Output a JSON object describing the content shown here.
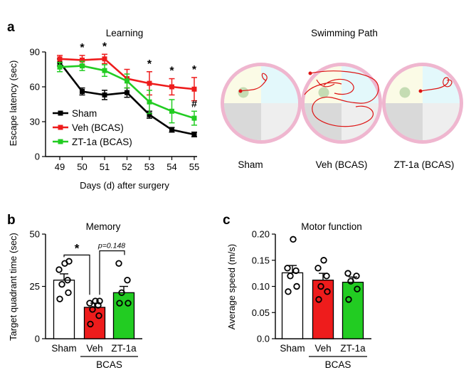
{
  "colors": {
    "sham": "#000000",
    "veh": "#ee1c1c",
    "zt": "#22cc22",
    "pool_ring": "#efb6cf",
    "pool_fill": "#e7e7e7",
    "quad_target": "#fbfbe6",
    "quad_cyan": "#e3f8fb",
    "quad_gray": "#d9d9d9",
    "platform": "#c5dcb3",
    "path": "#dd1414"
  },
  "panel_a": {
    "letter": "a",
    "chart_data": {
      "type": "line",
      "title": "Learning",
      "xlabel": "Days (d) after surgery",
      "ylabel": "Escape latency (sec)",
      "categories": [
        "49",
        "50",
        "51",
        "52",
        "53",
        "54",
        "55"
      ],
      "ylim": [
        0,
        90
      ],
      "yticks": [
        "0",
        "30",
        "60",
        "90"
      ],
      "series": [
        {
          "name": "Sham",
          "color": "#000000",
          "values": [
            81,
            56,
            53,
            55,
            36,
            23,
            19
          ],
          "err": [
            3,
            3,
            4,
            4,
            3,
            2,
            2
          ]
        },
        {
          "name": "Veh (BCAS)",
          "color": "#ee1c1c",
          "values": [
            84,
            83,
            84,
            67,
            63,
            60,
            58
          ],
          "err": [
            3,
            4,
            4,
            8,
            10,
            7,
            10
          ]
        },
        {
          "name": "ZT-1a (BCAS)",
          "color": "#22cc22",
          "values": [
            77,
            78,
            74,
            65,
            47,
            39,
            33
          ],
          "err": [
            4,
            4,
            5,
            6,
            10,
            10,
            6
          ]
        }
      ],
      "annotations": [
        "*",
        "*",
        "",
        "*",
        "*",
        "*"
      ],
      "annotation_extra": "#"
    },
    "legend": [
      "Sham",
      "Veh (BCAS)",
      "ZT-1a (BCAS)"
    ]
  },
  "swim": {
    "title": "Swimming Path",
    "labels": [
      "Sham",
      "Veh (BCAS)",
      "ZT-1a  (BCAS)"
    ]
  },
  "panel_b": {
    "letter": "b",
    "chart_data": {
      "type": "bar",
      "title": "Memory",
      "ylabel": "Target quadrant time (sec)",
      "categories": [
        "Sham",
        "Veh",
        "ZT-1a"
      ],
      "values": [
        28,
        15,
        22
      ],
      "err": [
        3,
        2,
        3
      ],
      "colors": [
        "#ffffff",
        "#ee1c1c",
        "#22cc22"
      ],
      "points": [
        [
          19,
          22,
          26,
          28,
          33,
          36,
          37
        ],
        [
          7,
          11,
          14,
          16,
          17,
          18,
          18
        ],
        [
          17,
          17,
          22,
          28,
          36
        ]
      ],
      "ylim": [
        0,
        50
      ],
      "yticks": [
        "0",
        "25",
        "50"
      ],
      "group_label": "BCAS",
      "sig_star": "*",
      "sig_p": "p=0.148"
    }
  },
  "panel_c": {
    "letter": "c",
    "chart_data": {
      "type": "bar",
      "title": "Motor function",
      "ylabel": "Average speed (m/s)",
      "categories": [
        "Sham",
        "Veh",
        "ZT-1a"
      ],
      "values": [
        0.126,
        0.112,
        0.108
      ],
      "err": [
        0.014,
        0.013,
        0.01
      ],
      "colors": [
        "#ffffff",
        "#ee1c1c",
        "#22cc22"
      ],
      "points": [
        [
          0.09,
          0.1,
          0.12,
          0.13,
          0.135,
          0.19
        ],
        [
          0.075,
          0.09,
          0.1,
          0.12,
          0.135,
          0.15
        ],
        [
          0.075,
          0.095,
          0.11,
          0.12,
          0.125
        ]
      ],
      "ylim": [
        0,
        0.2
      ],
      "yticks": [
        "0.0",
        "0.05",
        "0.10",
        "0.15",
        "0.20"
      ],
      "group_label": "BCAS"
    }
  }
}
